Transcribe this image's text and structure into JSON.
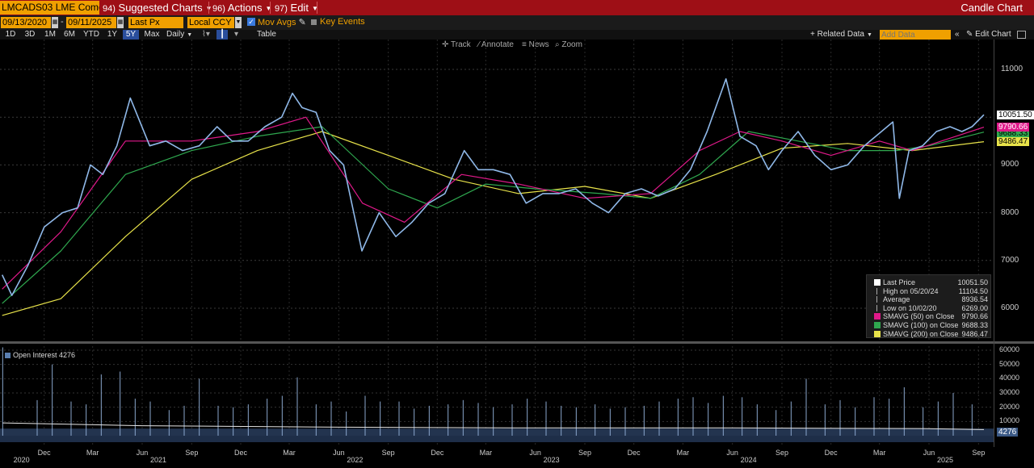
{
  "toolbar": {
    "ticker": "LMCADS03 LME Comdty",
    "suggested": {
      "num": "94)",
      "label": "Suggested Charts"
    },
    "actions": {
      "num": "96)",
      "label": "Actions"
    },
    "edit": {
      "num": "97)",
      "label": "Edit"
    },
    "chart_type": "Candle Chart"
  },
  "settings": {
    "start_date": "09/13/2020",
    "date_sep": "-",
    "end_date": "09/11/2025",
    "price_field": "Last Px",
    "currency": "Local CCY",
    "mov_avgs_label": "Mov Avgs",
    "key_events_label": "Key Events"
  },
  "ranges": [
    "1D",
    "3D",
    "1M",
    "6M",
    "YTD",
    "1Y",
    "5Y",
    "Max"
  ],
  "active_range": "5Y",
  "periodicity": "Daily",
  "table_label": "Table",
  "related_data_label": "+ Related Data",
  "add_data_placeholder": "Add Data",
  "edit_chart_label": "Edit Chart",
  "chart_tools": [
    "Track",
    "Annotate",
    "News",
    "Zoom"
  ],
  "colors": {
    "menu_bar": "#9e0f16",
    "accent_orange": "#f0a000",
    "candle": "#8fb8e8",
    "sma50": "#e0198a",
    "sma100": "#2fa84f",
    "sma200": "#e8e34a"
  },
  "price_tags": {
    "last": "10051.50",
    "sma50": "9790.66",
    "sma100": "9688.33",
    "sma200": "9486.47"
  },
  "legend": [
    {
      "label": "Last Price",
      "value": "10051.50",
      "swatch": "#ffffff"
    },
    {
      "label": "High on 05/20/24",
      "value": "11104.50",
      "swatch": ""
    },
    {
      "label": "Average",
      "value": "8936.54",
      "swatch": ""
    },
    {
      "label": "Low on 10/02/20",
      "value": "6269.00",
      "swatch": ""
    },
    {
      "label": "SMAVG (50)  on Close",
      "value": "9790.66",
      "swatch": "#e0198a"
    },
    {
      "label": "SMAVG (100)  on Close",
      "value": "9688.33",
      "swatch": "#2fa84f"
    },
    {
      "label": "SMAVG (200)  on Close",
      "value": "9486.47",
      "swatch": "#e8e34a"
    }
  ],
  "oi_label": "Open Interest 4276",
  "oi_tag": "4276",
  "chart_data": [
    {
      "type": "candlestick",
      "title": "",
      "xlim": [
        "2020-09-13",
        "2025-09-11"
      ],
      "ylim": [
        5400,
        11600
      ],
      "ytick_labels": [
        "6000",
        "7000",
        "8000",
        "9000",
        "10000",
        "11000"
      ],
      "yticks": [
        6000,
        7000,
        8000,
        9000,
        10000,
        11000
      ],
      "xtick_labels": [
        "Dec",
        "Mar",
        "Jun",
        "Sep",
        "Dec",
        "Mar",
        "Jun",
        "Sep",
        "Dec",
        "Mar",
        "Jun",
        "Sep",
        "Dec",
        "Mar",
        "Jun",
        "Sep",
        "Dec",
        "Mar",
        "Jun",
        "Sep"
      ],
      "xticks": [
        "2020-12-01",
        "2021-03-01",
        "2021-06-01",
        "2021-09-01",
        "2021-12-01",
        "2022-03-01",
        "2022-06-01",
        "2022-09-01",
        "2022-12-01",
        "2023-03-01",
        "2023-06-01",
        "2023-09-01",
        "2023-12-01",
        "2024-03-01",
        "2024-06-01",
        "2024-09-01",
        "2024-12-01",
        "2025-03-01",
        "2025-06-01",
        "2025-09-01"
      ],
      "year_labels": [
        "2020",
        "2021",
        "2022",
        "2023",
        "2024",
        "2025"
      ],
      "year_positions": [
        "2020-10-20",
        "2021-07-01",
        "2022-07-01",
        "2023-07-01",
        "2024-07-01",
        "2025-07-01"
      ],
      "series": [
        {
          "name": "Last Price",
          "x": [
            "2020-09-14",
            "2020-10-02",
            "2020-11-01",
            "2020-12-01",
            "2021-01-04",
            "2021-02-01",
            "2021-02-25",
            "2021-03-20",
            "2021-04-15",
            "2021-05-10",
            "2021-06-15",
            "2021-07-15",
            "2021-08-15",
            "2021-09-15",
            "2021-10-18",
            "2021-11-15",
            "2021-12-15",
            "2022-01-15",
            "2022-02-15",
            "2022-03-07",
            "2022-03-25",
            "2022-04-20",
            "2022-05-15",
            "2022-06-10",
            "2022-07-14",
            "2022-08-15",
            "2022-09-15",
            "2022-10-15",
            "2022-11-15",
            "2022-12-15",
            "2023-01-20",
            "2023-02-15",
            "2023-03-15",
            "2023-04-15",
            "2023-05-15",
            "2023-06-15",
            "2023-07-15",
            "2023-08-15",
            "2023-09-15",
            "2023-10-15",
            "2023-11-15",
            "2023-12-15",
            "2024-01-15",
            "2024-02-15",
            "2024-03-15",
            "2024-04-15",
            "2024-05-20",
            "2024-06-15",
            "2024-07-15",
            "2024-08-07",
            "2024-09-01",
            "2024-10-01",
            "2024-11-01",
            "2024-12-01",
            "2025-01-01",
            "2025-02-01",
            "2025-03-26",
            "2025-04-07",
            "2025-04-25",
            "2025-05-20",
            "2025-06-15",
            "2025-07-10",
            "2025-08-01",
            "2025-08-20",
            "2025-09-11"
          ],
          "values": [
            6700,
            6269,
            6900,
            7700,
            8000,
            8100,
            9000,
            8800,
            9400,
            10400,
            9400,
            9500,
            9300,
            9400,
            9800,
            9500,
            9500,
            9800,
            10000,
            10500,
            10200,
            10100,
            9300,
            9000,
            7200,
            8000,
            7500,
            7800,
            8200,
            8400,
            9300,
            8900,
            8900,
            8800,
            8200,
            8400,
            8400,
            8500,
            8200,
            8000,
            8400,
            8500,
            8350,
            8500,
            8900,
            9700,
            10800,
            9600,
            9400,
            8900,
            9300,
            9700,
            9200,
            8900,
            9000,
            9400,
            9900,
            8300,
            9300,
            9400,
            9700,
            9800,
            9700,
            9800,
            10051.5
          ]
        },
        {
          "name": "SMAVG (50) on Close",
          "x": [
            "2020-09-14",
            "2021-01-01",
            "2021-05-01",
            "2021-09-01",
            "2022-01-01",
            "2022-04-01",
            "2022-07-15",
            "2022-10-01",
            "2023-01-15",
            "2023-05-01",
            "2023-09-01",
            "2024-01-01",
            "2024-04-01",
            "2024-06-15",
            "2024-09-01",
            "2024-12-01",
            "2025-03-01",
            "2025-05-01",
            "2025-09-11"
          ],
          "values": [
            6400,
            7600,
            9500,
            9500,
            9700,
            10000,
            8200,
            7800,
            8800,
            8600,
            8300,
            8400,
            9300,
            9700,
            9500,
            9200,
            9500,
            9300,
            9790.66
          ]
        },
        {
          "name": "SMAVG (100) on Close",
          "x": [
            "2020-09-14",
            "2021-01-01",
            "2021-05-01",
            "2021-09-01",
            "2022-01-01",
            "2022-05-01",
            "2022-09-01",
            "2022-12-01",
            "2023-03-01",
            "2023-06-01",
            "2023-10-01",
            "2024-01-01",
            "2024-04-01",
            "2024-07-01",
            "2024-10-01",
            "2025-01-01",
            "2025-04-01",
            "2025-06-01",
            "2025-09-11"
          ],
          "values": [
            6100,
            7200,
            8800,
            9300,
            9600,
            9800,
            8500,
            8100,
            8600,
            8500,
            8400,
            8300,
            8800,
            9700,
            9500,
            9300,
            9300,
            9400,
            9688.33
          ]
        },
        {
          "name": "SMAVG (200) on Close",
          "x": [
            "2020-09-14",
            "2021-01-01",
            "2021-05-01",
            "2021-09-01",
            "2022-01-01",
            "2022-05-01",
            "2022-09-01",
            "2023-01-01",
            "2023-05-01",
            "2023-09-01",
            "2024-01-01",
            "2024-05-01",
            "2024-09-01",
            "2025-01-01",
            "2025-05-01",
            "2025-09-11"
          ],
          "values": [
            5850,
            6200,
            7500,
            8700,
            9300,
            9700,
            9200,
            8700,
            8400,
            8550,
            8300,
            8800,
            9350,
            9450,
            9300,
            9486.47
          ]
        }
      ]
    },
    {
      "type": "bar",
      "title": "",
      "xlim": [
        "2020-09-13",
        "2025-09-11"
      ],
      "ylim": [
        0,
        63000
      ],
      "ytick_labels": [
        "10000",
        "20000",
        "30000",
        "40000",
        "50000",
        "60000"
      ],
      "yticks": [
        10000,
        20000,
        30000,
        40000,
        50000,
        60000
      ],
      "series": [
        {
          "name": "Open Interest",
          "x": [
            "2020-09-15",
            "2020-11-18",
            "2020-12-16",
            "2021-01-20",
            "2021-02-17",
            "2021-03-17",
            "2021-04-21",
            "2021-05-19",
            "2021-06-16",
            "2021-07-21",
            "2021-08-18",
            "2021-09-15",
            "2021-10-20",
            "2021-11-17",
            "2021-12-15",
            "2022-01-19",
            "2022-02-16",
            "2022-03-16",
            "2022-04-20",
            "2022-05-18",
            "2022-06-15",
            "2022-07-20",
            "2022-08-17",
            "2022-09-21",
            "2022-10-19",
            "2022-11-16",
            "2022-12-21",
            "2023-01-18",
            "2023-02-15",
            "2023-03-15",
            "2023-04-19",
            "2023-05-17",
            "2023-06-21",
            "2023-07-19",
            "2023-08-16",
            "2023-09-20",
            "2023-10-18",
            "2023-11-15",
            "2023-12-20",
            "2024-01-17",
            "2024-02-21",
            "2024-03-20",
            "2024-04-17",
            "2024-05-15",
            "2024-06-19",
            "2024-07-17",
            "2024-08-21",
            "2024-09-18",
            "2024-10-16",
            "2024-11-20",
            "2024-12-18",
            "2025-01-15",
            "2025-02-19",
            "2025-03-19",
            "2025-04-16",
            "2025-05-21",
            "2025-06-18",
            "2025-07-16",
            "2025-08-20"
          ],
          "values": [
            62000,
            25000,
            50000,
            24000,
            22000,
            43000,
            45000,
            26000,
            24000,
            18000,
            21000,
            40000,
            21000,
            20000,
            22000,
            26000,
            28000,
            41000,
            22000,
            24000,
            17000,
            28000,
            24000,
            24000,
            19000,
            21000,
            22000,
            25000,
            23000,
            20000,
            22000,
            26000,
            24000,
            21000,
            20000,
            22000,
            19000,
            20000,
            21000,
            24000,
            26000,
            27000,
            23000,
            28000,
            27000,
            22000,
            18000,
            24000,
            40000,
            22000,
            25000,
            20000,
            27000,
            26000,
            34000,
            20000,
            24000,
            30000,
            22000
          ]
        },
        {
          "name": "Open Interest average",
          "x": [
            "2020-09-15",
            "2021-06-01",
            "2022-06-01",
            "2023-06-01",
            "2024-06-01",
            "2025-06-01",
            "2025-09-11"
          ],
          "values": [
            9000,
            7000,
            6000,
            5500,
            5500,
            5000,
            4276
          ]
        }
      ]
    }
  ]
}
